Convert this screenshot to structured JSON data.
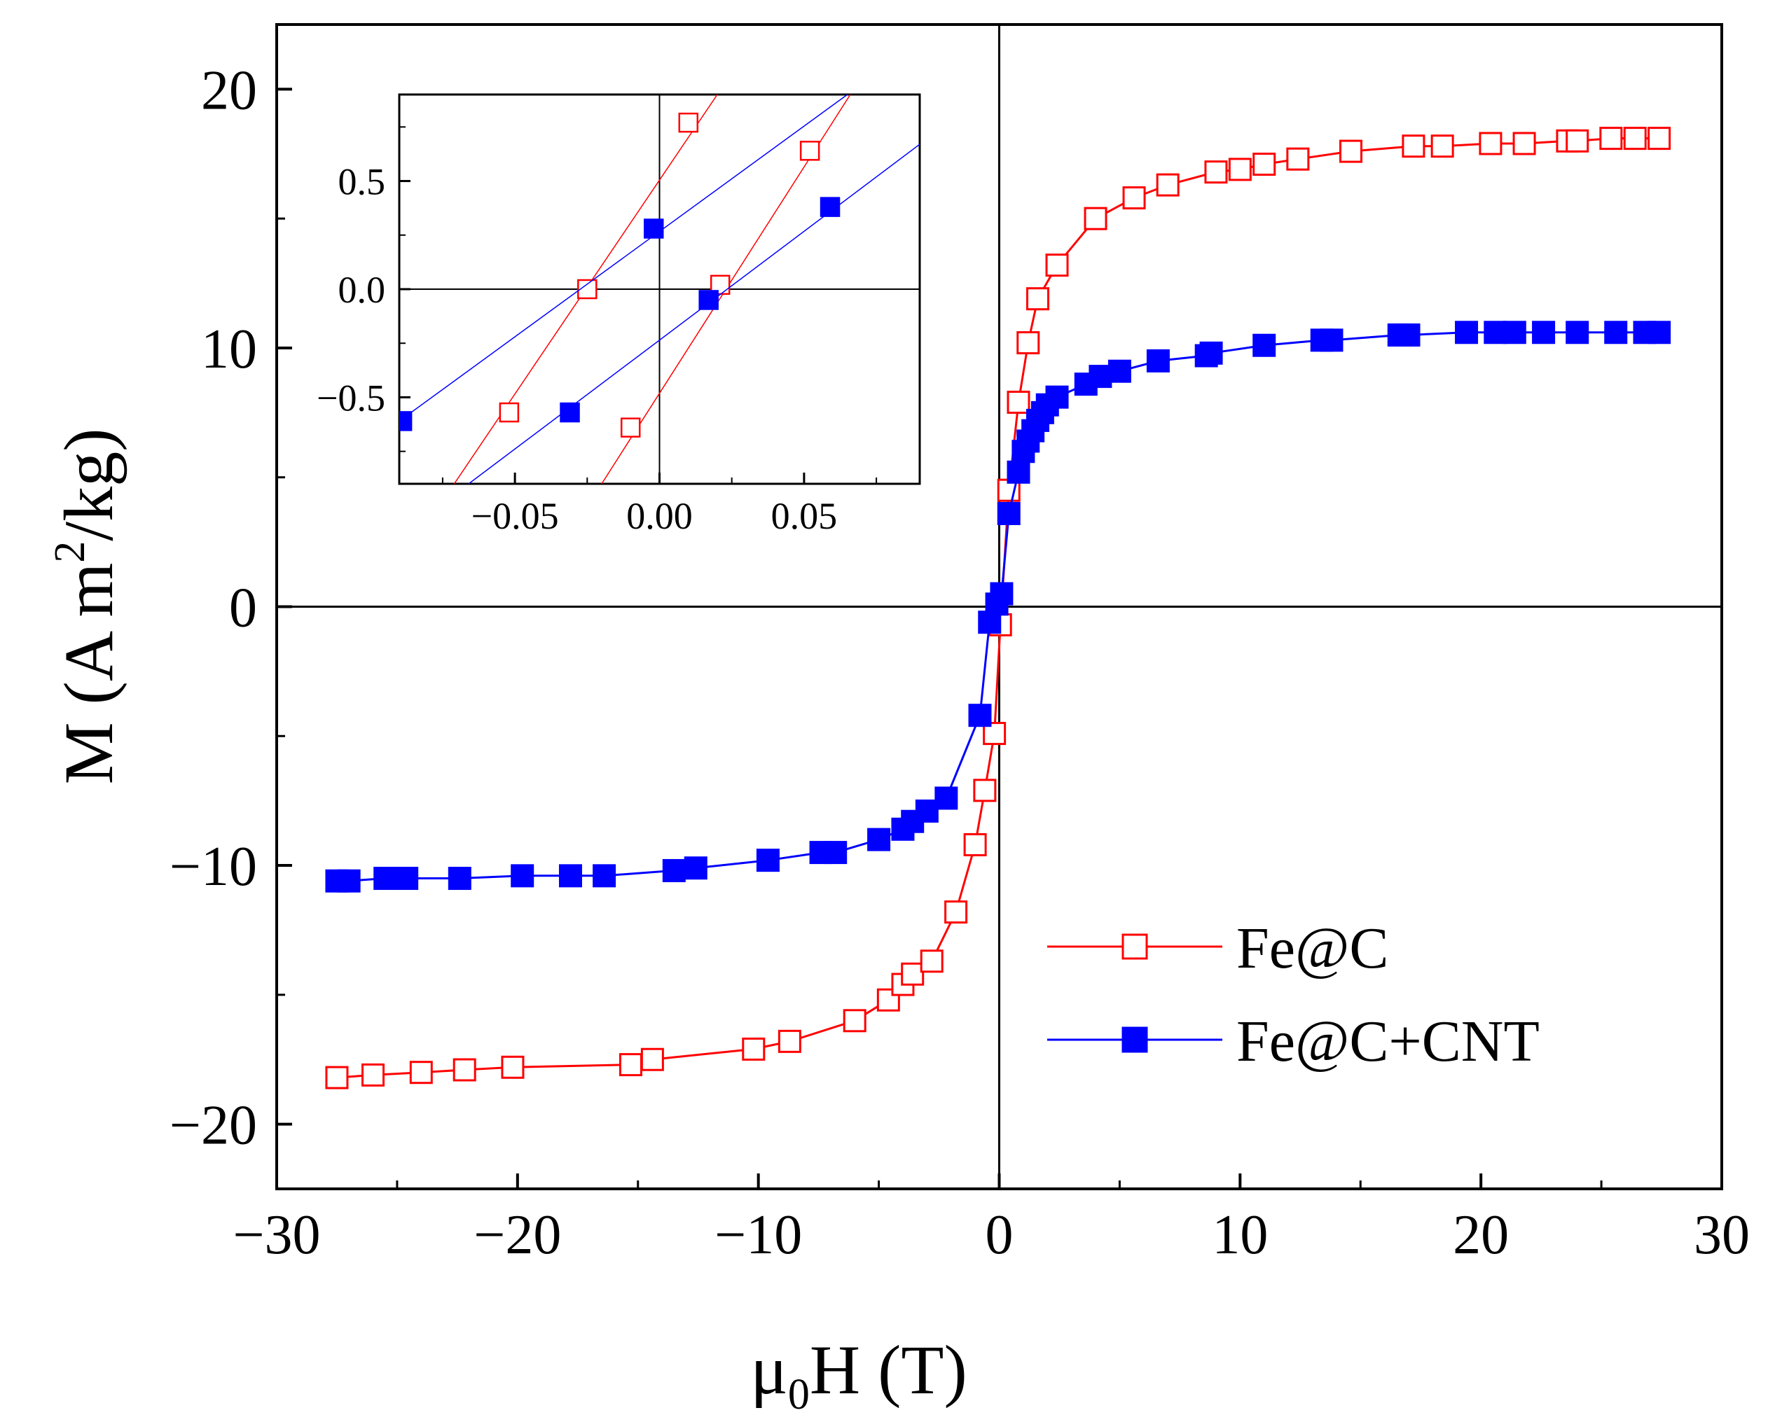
{
  "chart_data": {
    "type": "line",
    "title": "",
    "xlabel": "μ0H (T)",
    "xlabel_parts": {
      "main": "μ",
      "sub": "0",
      "rest": "H (T)"
    },
    "ylabel": "M (A m2/kg)",
    "ylabel_parts": {
      "main": "M (A m",
      "sup": "2",
      "rest": "/kg)"
    },
    "xlim": [
      -30,
      30
    ],
    "ylim": [
      -22.5,
      22.5
    ],
    "xticks": [
      -30,
      -20,
      -10,
      0,
      10,
      20,
      30
    ],
    "xtick_labels": [
      "−30",
      "−20",
      "−10",
      "0",
      "10",
      "20",
      "30"
    ],
    "yticks": [
      -20,
      -10,
      0,
      10,
      20
    ],
    "ytick_labels": [
      "−20",
      "−10",
      "0",
      "10",
      "20"
    ],
    "legend_position": "lower-right",
    "series": [
      {
        "name": "Fe@C",
        "color": "#ff0000",
        "marker": "open-square",
        "x": [
          -27.5,
          -26.0,
          -24.0,
          -22.2,
          -20.2,
          -15.3,
          -14.4,
          -10.2,
          -8.7,
          -6.0,
          -4.6,
          -4.0,
          -3.6,
          -2.8,
          -1.8,
          -1.0,
          -0.6,
          -0.2,
          0.05,
          0.4,
          0.8,
          1.2,
          1.6,
          2.4,
          4.0,
          5.6,
          7.0,
          9.0,
          10.0,
          11.0,
          12.4,
          14.6,
          17.2,
          18.4,
          20.4,
          21.8,
          23.6,
          24.0,
          25.4,
          26.4,
          27.4
        ],
        "y": [
          -18.2,
          -18.1,
          -18.0,
          -17.9,
          -17.8,
          -17.7,
          -17.5,
          -17.1,
          -16.8,
          -16.0,
          -15.2,
          -14.6,
          -14.2,
          -13.7,
          -11.8,
          -9.2,
          -7.1,
          -4.9,
          -0.7,
          4.5,
          7.9,
          10.2,
          11.9,
          13.2,
          15.0,
          15.8,
          16.3,
          16.8,
          16.9,
          17.1,
          17.3,
          17.6,
          17.8,
          17.8,
          17.9,
          17.9,
          18.0,
          18.0,
          18.1,
          18.1,
          18.1
        ]
      },
      {
        "name": "Fe@C+CNT",
        "color": "#0000ff",
        "marker": "filled-square",
        "x": [
          -27.5,
          -27.0,
          -25.5,
          -24.6,
          -22.4,
          -19.8,
          -17.8,
          -16.4,
          -13.5,
          -12.6,
          -9.6,
          -7.4,
          -6.8,
          -5.0,
          -4.0,
          -3.6,
          -3.0,
          -2.2,
          -0.8,
          -0.4,
          -0.1,
          0.1,
          0.4,
          0.8,
          1.0,
          1.2,
          1.4,
          1.6,
          1.8,
          2.0,
          2.4,
          3.6,
          4.2,
          5.0,
          6.6,
          8.6,
          8.8,
          11.0,
          13.4,
          13.8,
          16.6,
          17.0,
          19.4,
          20.6,
          21.4,
          22.6,
          24.0,
          25.6,
          26.8,
          27.4
        ],
        "y": [
          -10.6,
          -10.6,
          -10.5,
          -10.5,
          -10.5,
          -10.4,
          -10.4,
          -10.4,
          -10.2,
          -10.1,
          -9.8,
          -9.5,
          -9.5,
          -9.0,
          -8.6,
          -8.3,
          -7.9,
          -7.4,
          -4.2,
          -0.6,
          0.1,
          0.5,
          3.6,
          5.2,
          6.0,
          6.4,
          6.8,
          7.2,
          7.5,
          7.8,
          8.1,
          8.6,
          8.9,
          9.1,
          9.5,
          9.7,
          9.8,
          10.1,
          10.3,
          10.3,
          10.5,
          10.5,
          10.6,
          10.6,
          10.6,
          10.6,
          10.6,
          10.6,
          10.6,
          10.6
        ]
      }
    ],
    "inset": {
      "xlim": [
        -0.09,
        0.09
      ],
      "ylim": [
        -0.9,
        0.9
      ],
      "xticks": [
        -0.05,
        0.0,
        0.05
      ],
      "xtick_labels": [
        "−0.05",
        "0.00",
        "0.05"
      ],
      "yticks": [
        -0.5,
        0.0,
        0.5
      ],
      "ytick_labels": [
        "−0.5",
        "0.0",
        "0.5"
      ],
      "series": [
        {
          "name": "Fe@C",
          "color": "#ff0000",
          "marker": "open-square",
          "branches": [
            {
              "x": [
                -0.071,
                0.02
              ],
              "y": [
                -0.9,
                0.9
              ],
              "markers_x": [
                -0.052,
                -0.025,
                0.01
              ],
              "markers_y": [
                -0.57,
                0.0,
                0.77
              ]
            },
            {
              "x": [
                -0.02,
                0.066
              ],
              "y": [
                -0.9,
                0.9
              ],
              "markers_x": [
                -0.01,
                0.021,
                0.052
              ],
              "markers_y": [
                -0.64,
                0.02,
                0.64
              ]
            }
          ]
        },
        {
          "name": "Fe@C+CNT",
          "color": "#0000ff",
          "marker": "filled-square",
          "branches": [
            {
              "x": [
                -0.09,
                0.065
              ],
              "y": [
                -0.61,
                0.9
              ],
              "markers_x": [
                -0.089,
                -0.031,
                -0.002
              ],
              "markers_y": [
                -0.61,
                -0.57,
                0.28
              ]
            },
            {
              "x": [
                -0.066,
                0.09
              ],
              "y": [
                -0.9,
                0.67
              ],
              "markers_x": [
                0.017,
                0.059
              ],
              "markers_y": [
                -0.05,
                0.38
              ]
            }
          ]
        }
      ]
    }
  }
}
